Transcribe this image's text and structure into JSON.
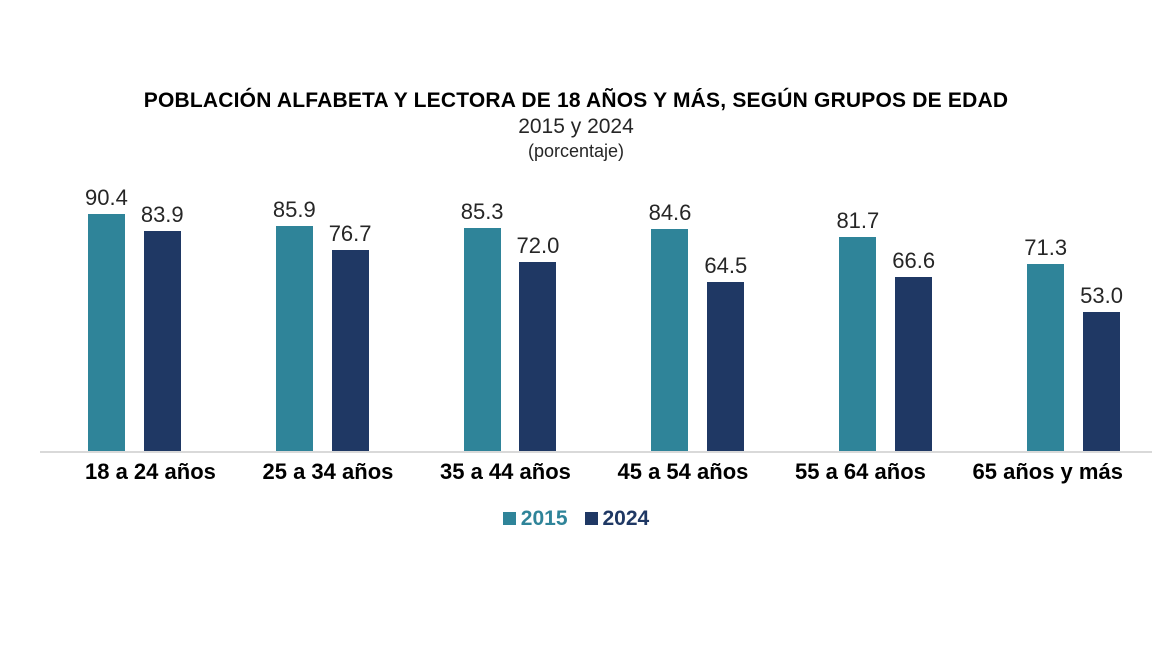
{
  "chart_data": {
    "type": "bar",
    "title": "POBLACIÓN ALFABETA Y LECTORA DE 18 AÑOS Y MÁS, SEGÚN GRUPOS DE EDAD",
    "subtitle": "2015 y 2024",
    "unit_label": "(porcentaje)",
    "categories": [
      "18 a 24 años",
      "25 a 34 años",
      "35 a 44 años",
      "45 a 54 años",
      "55 a 64 años",
      "65 años y más"
    ],
    "series": [
      {
        "name": "2015",
        "color": "#2F8499",
        "values": [
          90.4,
          85.9,
          85.3,
          84.6,
          81.7,
          71.3
        ],
        "labels": [
          "90.4",
          "85.9",
          "85.3",
          "84.6",
          "81.7",
          "71.3"
        ]
      },
      {
        "name": "2024",
        "color": "#1F3864",
        "values": [
          83.9,
          76.7,
          72.0,
          64.5,
          66.6,
          53.0
        ],
        "labels": [
          "83.9",
          "76.7",
          "72.0",
          "64.5",
          "66.6",
          "53.0"
        ]
      }
    ],
    "ylim": [
      0,
      100
    ],
    "grid": false,
    "legend_position": "bottom",
    "value_labels": true,
    "axis_line_color": "#D9D9D9"
  }
}
